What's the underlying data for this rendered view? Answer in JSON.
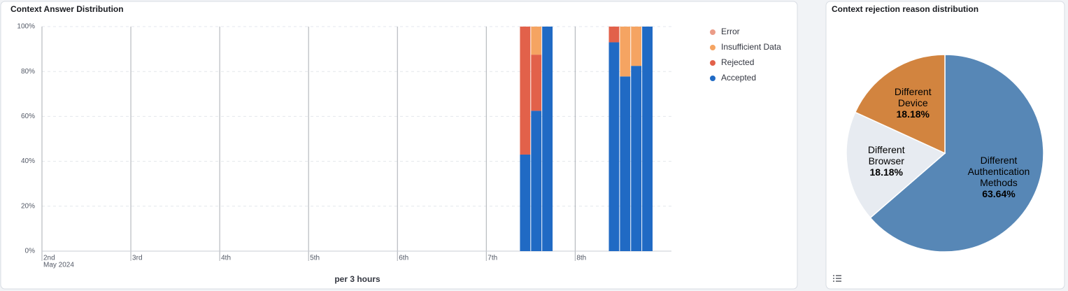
{
  "chart_data": [
    {
      "type": "stacked_bar",
      "title": "Context Answer Distribution",
      "x_label": "per 3 hours",
      "x": [
        129,
        132,
        135,
        153,
        156,
        159,
        162
      ],
      "bar_width": 3,
      "xlim": [
        0,
        170
      ],
      "xticks": [
        {
          "value": 0,
          "label": "2nd"
        },
        {
          "value": 24,
          "label": "3rd"
        },
        {
          "value": 48,
          "label": "4th"
        },
        {
          "value": 72,
          "label": "5th"
        },
        {
          "value": 96,
          "label": "6th"
        },
        {
          "value": 120,
          "label": "7th"
        },
        {
          "value": 144,
          "label": "8th"
        }
      ],
      "x_sublabel": "May 2024",
      "ylim": [
        0,
        100
      ],
      "yticks": [
        {
          "value": 0,
          "label": "0%"
        },
        {
          "value": 20,
          "label": "20%"
        },
        {
          "value": 40,
          "label": "40%"
        },
        {
          "value": 60,
          "label": "60%"
        },
        {
          "value": 80,
          "label": "80%"
        },
        {
          "value": 100,
          "label": "100%"
        }
      ],
      "grid": true,
      "series": [
        {
          "name": "Error",
          "color": "#eb9c88",
          "values": [
            0,
            0,
            0,
            0,
            0,
            0,
            0
          ]
        },
        {
          "name": "Insufficient Data",
          "color": "#f5a462",
          "values": [
            0,
            12.5,
            0,
            0,
            22.2,
            17.5,
            0
          ]
        },
        {
          "name": "Rejected",
          "color": "#e2614a",
          "values": [
            57,
            25,
            0,
            7,
            0,
            0,
            0
          ]
        },
        {
          "name": "Accepted",
          "color": "#206ac4",
          "values": [
            43,
            62.5,
            100,
            93,
            77.8,
            82.5,
            100
          ]
        }
      ]
    },
    {
      "type": "pie",
      "title": "Context rejection reason distribution",
      "categories": [
        "Different Authentication Methods",
        "Different Browser",
        "Different Device"
      ],
      "values": [
        63.64,
        18.18,
        18.18
      ],
      "value_labels": [
        "63.64%",
        "18.18%",
        "18.18%"
      ],
      "colors": [
        "#5787b6",
        "#e7ebf1",
        "#d2843f"
      ]
    }
  ]
}
